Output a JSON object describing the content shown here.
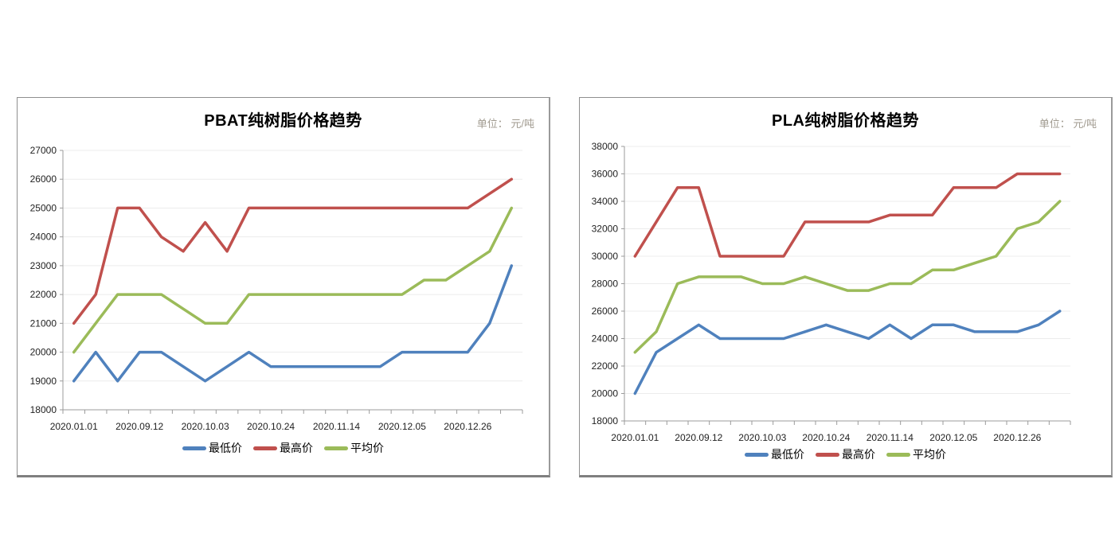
{
  "page": {
    "background": "#ffffff"
  },
  "legend_labels": [
    "最低价",
    "最高价",
    "平均价"
  ],
  "series_colors": {
    "min": "#4F81BD",
    "max": "#C0504D",
    "avg": "#9BBB59"
  },
  "chart_data": [
    {
      "type": "line",
      "title": "PBAT纯树脂价格趋势",
      "unit_label": "单位： 元/吨",
      "x_tick_labels": [
        "2020.01.01",
        "2020.09.12",
        "2020.10.03",
        "2020.10.24",
        "2020.11.14",
        "2020.12.05",
        "2020.12.26"
      ],
      "x_points": 21,
      "x_label_every": 3,
      "ylim": [
        18000,
        27000
      ],
      "y_step": 1000,
      "y_tick_labels": [
        "27000",
        "26000",
        "25000",
        "24000",
        "23000",
        "22000",
        "21000",
        "20000",
        "19000",
        "18000"
      ],
      "grid": true,
      "legend_position": "bottom",
      "series": [
        {
          "name": "最低价",
          "key": "min",
          "color": "#4F81BD",
          "values": [
            19000,
            20000,
            19000,
            20000,
            20000,
            19500,
            19000,
            19500,
            20000,
            19500,
            19500,
            19500,
            19500,
            19500,
            19500,
            20000,
            20000,
            20000,
            20000,
            21000,
            23000
          ]
        },
        {
          "name": "最高价",
          "key": "max",
          "color": "#C0504D",
          "values": [
            21000,
            22000,
            25000,
            25000,
            24000,
            23500,
            24500,
            23500,
            25000,
            25000,
            25000,
            25000,
            25000,
            25000,
            25000,
            25000,
            25000,
            25000,
            25000,
            25500,
            26000
          ]
        },
        {
          "name": "平均价",
          "key": "avg",
          "color": "#9BBB59",
          "values": [
            20000,
            21000,
            22000,
            22000,
            22000,
            21500,
            21000,
            21000,
            22000,
            22000,
            22000,
            22000,
            22000,
            22000,
            22000,
            22000,
            22500,
            22500,
            23000,
            23500,
            25000
          ]
        }
      ]
    },
    {
      "type": "line",
      "title": "PLA纯树脂价格趋势",
      "unit_label": "单位： 元/吨",
      "x_tick_labels": [
        "2020.01.01",
        "2020.09.12",
        "2020.10.03",
        "2020.10.24",
        "2020.11.14",
        "2020.12.05",
        "2020.12.26"
      ],
      "x_points": 21,
      "x_label_every": 3,
      "ylim": [
        18000,
        38000
      ],
      "y_step": 2000,
      "y_tick_labels": [
        "38000",
        "36000",
        "34000",
        "32000",
        "30000",
        "28000",
        "26000",
        "24000",
        "22000",
        "20000",
        "18000"
      ],
      "grid": true,
      "legend_position": "bottom",
      "series": [
        {
          "name": "最低价",
          "key": "min",
          "color": "#4F81BD",
          "values": [
            20000,
            23000,
            24000,
            25000,
            24000,
            24000,
            24000,
            24000,
            24500,
            25000,
            24500,
            24000,
            25000,
            24000,
            25000,
            25000,
            24500,
            24500,
            24500,
            25000,
            26000
          ]
        },
        {
          "name": "最高价",
          "key": "max",
          "color": "#C0504D",
          "values": [
            30000,
            32500,
            35000,
            35000,
            30000,
            30000,
            30000,
            30000,
            32500,
            32500,
            32500,
            32500,
            33000,
            33000,
            33000,
            35000,
            35000,
            35000,
            36000,
            36000,
            36000
          ]
        },
        {
          "name": "平均价",
          "key": "avg",
          "color": "#9BBB59",
          "values": [
            23000,
            24500,
            28000,
            28500,
            28500,
            28500,
            28000,
            28000,
            28500,
            28000,
            27500,
            27500,
            28000,
            28000,
            29000,
            29000,
            29500,
            30000,
            32000,
            32500,
            34000
          ]
        }
      ]
    }
  ]
}
